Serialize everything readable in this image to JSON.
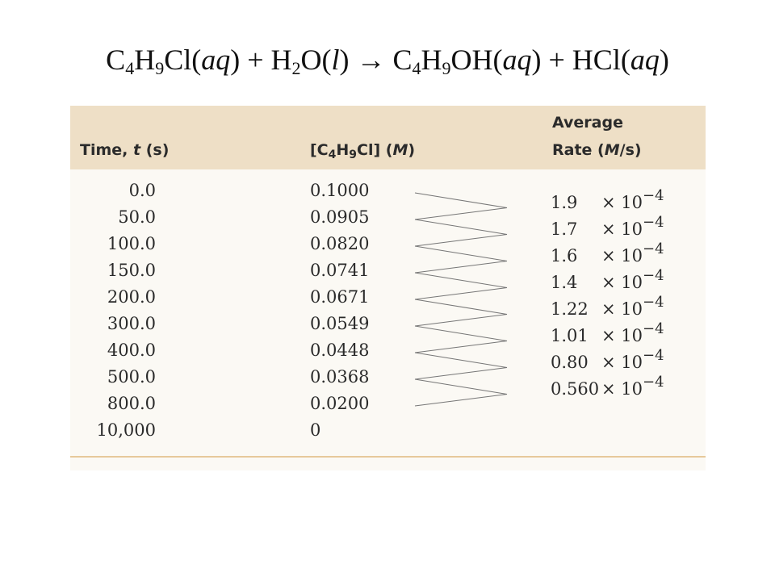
{
  "equation": {
    "r1": "C",
    "r1_sub1": "4",
    "r1_mid": "H",
    "r1_sub2": "9",
    "r1_end": "Cl(",
    "r1_state": "aq",
    "r1_close": ") + H",
    "r2_sub": "2",
    "r2_mid": "O(",
    "r2_state": "l",
    "r2_close": ") ",
    "arrow": "→",
    "p1": " C",
    "p1_sub1": "4",
    "p1_mid": "H",
    "p1_sub2": "9",
    "p1_end": "OH(",
    "p1_state": "aq",
    "p1_close": ") + HCl(",
    "p2_state": "aq",
    "p2_close": ")"
  },
  "table": {
    "headers": {
      "time_a": "Time, ",
      "time_t": "t",
      "time_b": " (s)",
      "conc_a": "[C",
      "conc_sub1": "4",
      "conc_mid": "H",
      "conc_sub2": "9",
      "conc_b": "Cl] (",
      "conc_M": "M",
      "conc_c": ")",
      "rate_line1": "Average",
      "rate_a": "Rate (",
      "rate_M": "M",
      "rate_b": "/s)"
    },
    "times": [
      "0.0",
      "50.0",
      "100.0",
      "150.0",
      "200.0",
      "300.0",
      "400.0",
      "500.0",
      "800.0",
      "10,000"
    ],
    "concentrations": [
      "0.1000",
      "0.0905",
      "0.0820",
      "0.0741",
      "0.0671",
      "0.0549",
      "0.0448",
      "0.0368",
      "0.0200",
      "0"
    ],
    "rates": [
      "1.9",
      "1.7",
      "1.6",
      "1.4",
      "1.22",
      "1.01",
      "0.80",
      "0.560"
    ],
    "rate_multiplier": "× 10",
    "rate_exponent": "−4"
  },
  "colors": {
    "header_bg": "#eedfc6",
    "table_bg": "#fbf9f4",
    "rule": "#e7c99b"
  }
}
